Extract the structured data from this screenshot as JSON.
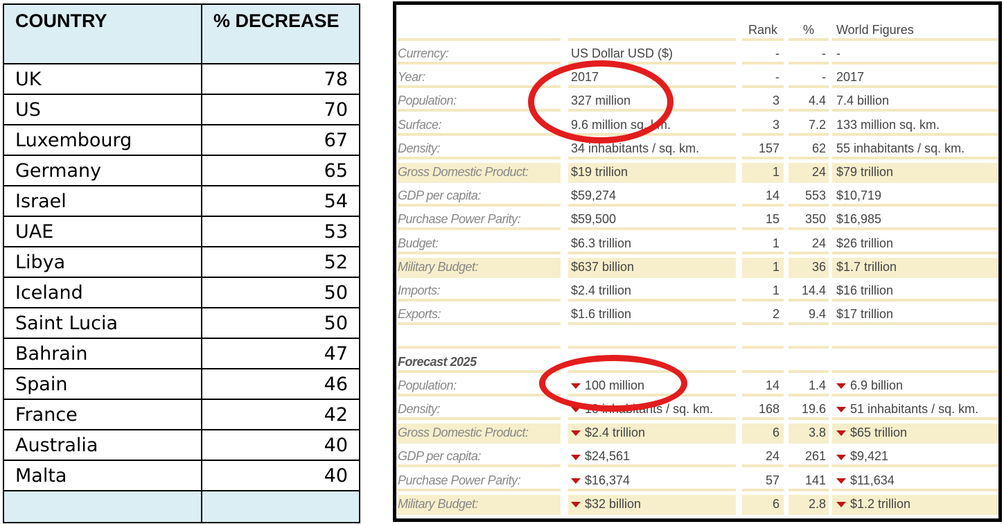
{
  "left_table": {
    "headers": [
      "COUNTRY",
      "% DECREASE"
    ],
    "rows": [
      {
        "country": "UK",
        "value": "78"
      },
      {
        "country": "US",
        "value": "70"
      },
      {
        "country": "Luxembourg",
        "value": "67"
      },
      {
        "country": "Germany",
        "value": "65"
      },
      {
        "country": "Israel",
        "value": "54"
      },
      {
        "country": "UAE",
        "value": "53"
      },
      {
        "country": "Libya",
        "value": "52"
      },
      {
        "country": "Iceland",
        "value": "50"
      },
      {
        "country": "Saint Lucia",
        "value": "50"
      },
      {
        "country": "Bahrain",
        "value": "47"
      },
      {
        "country": "Spain",
        "value": "46"
      },
      {
        "country": "France",
        "value": "42"
      },
      {
        "country": "Australia",
        "value": "40"
      },
      {
        "country": "Malta",
        "value": "40"
      }
    ]
  },
  "right_panel": {
    "headers": {
      "rank": "Rank",
      "pct": "%",
      "world": "World Figures"
    },
    "rows": [
      {
        "label": "Currency:",
        "value": "US Dollar USD ($)",
        "rank": "-",
        "pct": "-",
        "world": "-",
        "shaded": false,
        "down": false
      },
      {
        "label": "Year:",
        "value": "2017",
        "rank": "-",
        "pct": "-",
        "world": "2017",
        "shaded": false,
        "down": false
      },
      {
        "label": "Population:",
        "value": "327 million",
        "rank": "3",
        "pct": "4.4",
        "world": "7.4 billion",
        "shaded": false,
        "down": false
      },
      {
        "label": "Surface:",
        "value": "9.6 million sq. km.",
        "rank": "3",
        "pct": "7.2",
        "world": "133 million sq. km.",
        "shaded": false,
        "down": false
      },
      {
        "label": "Density:",
        "value": "34 inhabitants / sq. km.",
        "rank": "157",
        "pct": "62",
        "world": "55 inhabitants / sq. km.",
        "shaded": false,
        "down": false
      },
      {
        "label": "Gross Domestic Product:",
        "value": "$19 trillion",
        "rank": "1",
        "pct": "24",
        "world": "$79 trillion",
        "shaded": true,
        "down": false
      },
      {
        "label": "GDP per capita:",
        "value": "$59,274",
        "rank": "14",
        "pct": "553",
        "world": "$10,719",
        "shaded": false,
        "down": false
      },
      {
        "label": "Purchase Power Parity:",
        "value": "$59,500",
        "rank": "15",
        "pct": "350",
        "world": "$16,985",
        "shaded": false,
        "down": false
      },
      {
        "label": "Budget:",
        "value": "$6.3 trillion",
        "rank": "1",
        "pct": "24",
        "world": "$26 trillion",
        "shaded": false,
        "down": false
      },
      {
        "label": "Military Budget:",
        "value": "$637 billion",
        "rank": "1",
        "pct": "36",
        "world": "$1.7 trillion",
        "shaded": true,
        "down": false
      },
      {
        "label": "Imports:",
        "value": "$2.4 trillion",
        "rank": "1",
        "pct": "14.4",
        "world": "$16 trillion",
        "shaded": false,
        "down": false
      },
      {
        "label": "Exports:",
        "value": "$1.6 trillion",
        "rank": "2",
        "pct": "9.4",
        "world": "$17 trillion",
        "shaded": false,
        "down": false
      }
    ],
    "forecast_title": "Forecast 2025",
    "forecast_rows": [
      {
        "label": "Population:",
        "value": "100 million",
        "rank": "14",
        "pct": "1.4",
        "world": "6.9 billion",
        "shaded": false,
        "down": true
      },
      {
        "label": "Density:",
        "value": "10 inhabitants / sq. km.",
        "rank": "168",
        "pct": "19.6",
        "world": "51 inhabitants / sq. km.",
        "shaded": false,
        "down": true
      },
      {
        "label": "Gross Domestic Product:",
        "value": "$2.4 trillion",
        "rank": "6",
        "pct": "3.8",
        "world": "$65 trillion",
        "shaded": true,
        "down": true
      },
      {
        "label": "GDP per capita:",
        "value": "$24,561",
        "rank": "24",
        "pct": "261",
        "world": "$9,421",
        "shaded": false,
        "down": true
      },
      {
        "label": "Purchase Power Parity:",
        "value": "$16,374",
        "rank": "57",
        "pct": "141",
        "world": "$11,634",
        "shaded": false,
        "down": true
      },
      {
        "label": "Military Budget:",
        "value": "$32 billion",
        "rank": "6",
        "pct": "2.8",
        "world": "$1.2 trillion",
        "shaded": true,
        "down": true
      }
    ],
    "colors": {
      "shade": "#f7eecb",
      "circle": "#e31d1d",
      "down_arrow": "#c01515",
      "header_fill": "#dbeef4"
    },
    "icons": [
      "down-triangle-icon"
    ]
  }
}
